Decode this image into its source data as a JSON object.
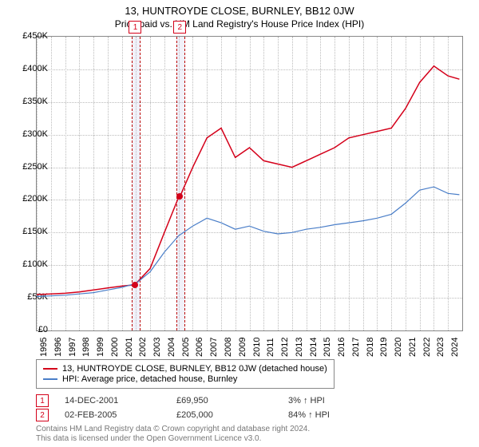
{
  "title": "13, HUNTROYDE CLOSE, BURNLEY, BB12 0JW",
  "subtitle": "Price paid vs. HM Land Registry's House Price Index (HPI)",
  "chart": {
    "type": "line",
    "background_color": "#ffffff",
    "grid_color": "#bbbbbb",
    "border_color": "#888888",
    "x_years": [
      1995,
      1996,
      1997,
      1998,
      1999,
      2000,
      2001,
      2002,
      2003,
      2004,
      2005,
      2006,
      2007,
      2008,
      2009,
      2010,
      2011,
      2012,
      2013,
      2014,
      2015,
      2016,
      2017,
      2018,
      2019,
      2020,
      2021,
      2022,
      2023,
      2024
    ],
    "x_min": 1995,
    "x_max": 2025,
    "y_min": 0,
    "y_max": 450000,
    "y_ticks": [
      0,
      50000,
      100000,
      150000,
      200000,
      250000,
      300000,
      350000,
      400000,
      450000
    ],
    "y_tick_labels": [
      "£0",
      "£50K",
      "£100K",
      "£150K",
      "£200K",
      "£250K",
      "£300K",
      "£350K",
      "£400K",
      "£450K"
    ],
    "axis_fontsize": 11,
    "series": [
      {
        "name": "13, HUNTROYDE CLOSE, BURNLEY, BB12 0JW (detached house)",
        "color": "#d4001a",
        "line_width": 1.5,
        "points": [
          [
            1995,
            55000
          ],
          [
            1996,
            56000
          ],
          [
            1997,
            57000
          ],
          [
            1998,
            59000
          ],
          [
            1999,
            62000
          ],
          [
            2000,
            65000
          ],
          [
            2001,
            68000
          ],
          [
            2001.95,
            69950
          ],
          [
            2002,
            72000
          ],
          [
            2003,
            95000
          ],
          [
            2004,
            150000
          ],
          [
            2005,
            204000
          ],
          [
            2005.09,
            205000
          ],
          [
            2006,
            250000
          ],
          [
            2007,
            295000
          ],
          [
            2008,
            310000
          ],
          [
            2009,
            265000
          ],
          [
            2010,
            280000
          ],
          [
            2011,
            260000
          ],
          [
            2012,
            255000
          ],
          [
            2013,
            250000
          ],
          [
            2014,
            260000
          ],
          [
            2015,
            270000
          ],
          [
            2016,
            280000
          ],
          [
            2017,
            295000
          ],
          [
            2018,
            300000
          ],
          [
            2019,
            305000
          ],
          [
            2020,
            310000
          ],
          [
            2021,
            340000
          ],
          [
            2022,
            380000
          ],
          [
            2023,
            405000
          ],
          [
            2024,
            390000
          ],
          [
            2024.8,
            385000
          ]
        ]
      },
      {
        "name": "HPI: Average price, detached house, Burnley",
        "color": "#4a7ec8",
        "line_width": 1.2,
        "points": [
          [
            1995,
            52000
          ],
          [
            1996,
            53000
          ],
          [
            1997,
            54000
          ],
          [
            1998,
            56000
          ],
          [
            1999,
            58000
          ],
          [
            2000,
            62000
          ],
          [
            2001,
            66000
          ],
          [
            2002,
            72000
          ],
          [
            2003,
            90000
          ],
          [
            2004,
            120000
          ],
          [
            2005,
            145000
          ],
          [
            2006,
            160000
          ],
          [
            2007,
            172000
          ],
          [
            2008,
            165000
          ],
          [
            2009,
            155000
          ],
          [
            2010,
            160000
          ],
          [
            2011,
            152000
          ],
          [
            2012,
            148000
          ],
          [
            2013,
            150000
          ],
          [
            2014,
            155000
          ],
          [
            2015,
            158000
          ],
          [
            2016,
            162000
          ],
          [
            2017,
            165000
          ],
          [
            2018,
            168000
          ],
          [
            2019,
            172000
          ],
          [
            2020,
            178000
          ],
          [
            2021,
            195000
          ],
          [
            2022,
            215000
          ],
          [
            2023,
            220000
          ],
          [
            2024,
            210000
          ],
          [
            2024.8,
            208000
          ]
        ]
      }
    ],
    "sale_markers": [
      {
        "n": 1,
        "x": 2001.95,
        "y": 69950,
        "color": "#d4001a",
        "band_start": 2001.7,
        "band_end": 2002.2
      },
      {
        "n": 2,
        "x": 2005.09,
        "y": 205000,
        "color": "#d4001a",
        "band_start": 2004.85,
        "band_end": 2005.35
      }
    ]
  },
  "legend": {
    "items": [
      {
        "label": "13, HUNTROYDE CLOSE, BURNLEY, BB12 0JW (detached house)",
        "color": "#d4001a"
      },
      {
        "label": "HPI: Average price, detached house, Burnley",
        "color": "#4a7ec8"
      }
    ]
  },
  "sales": [
    {
      "n": "1",
      "date": "14-DEC-2001",
      "price": "£69,950",
      "delta": "3% ↑ HPI",
      "color": "#d4001a"
    },
    {
      "n": "2",
      "date": "02-FEB-2005",
      "price": "£205,000",
      "delta": "84% ↑ HPI",
      "color": "#d4001a"
    }
  ],
  "footnote_line1": "Contains HM Land Registry data © Crown copyright and database right 2024.",
  "footnote_line2": "This data is licensed under the Open Government Licence v3.0."
}
